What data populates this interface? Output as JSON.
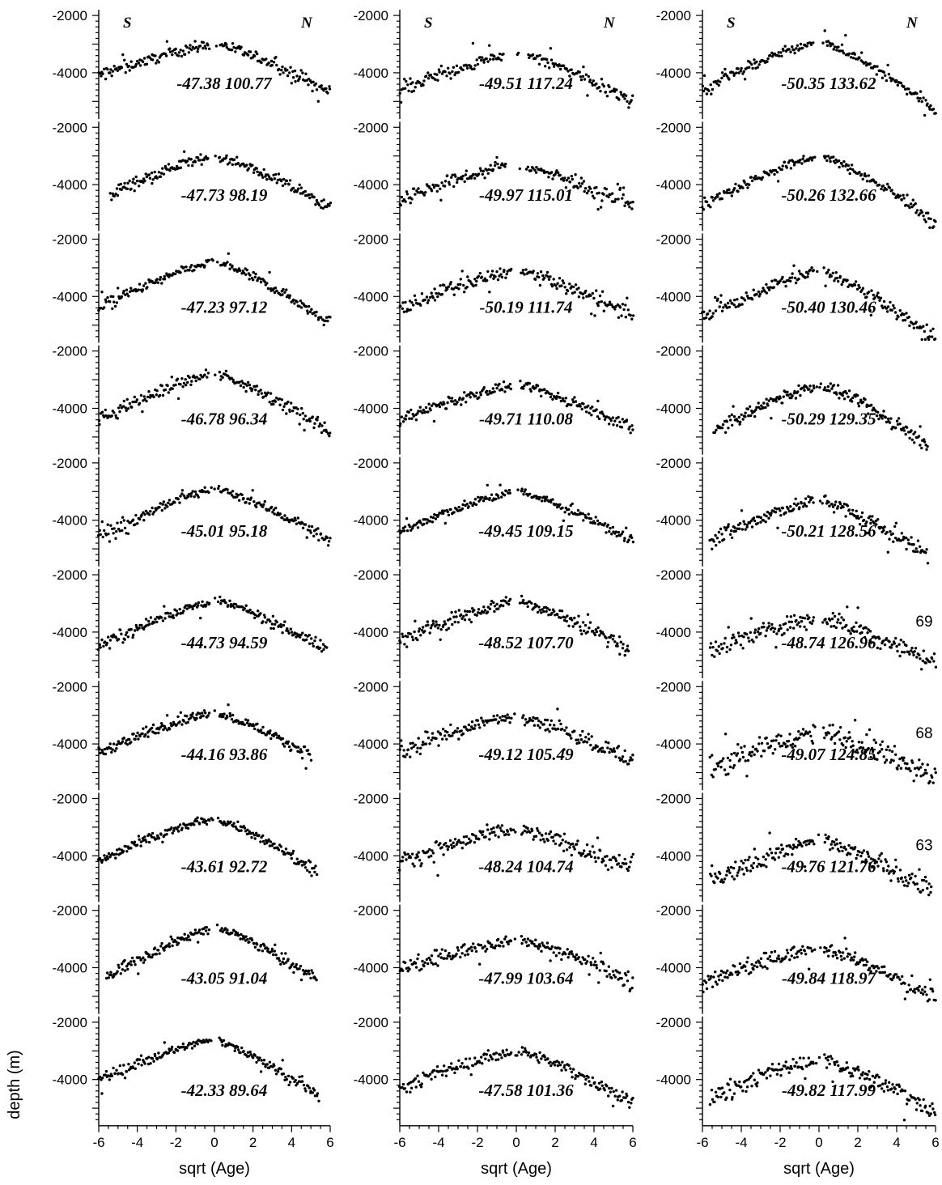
{
  "figure": {
    "ylabel": "depth (m)",
    "xlabel": "sqrt (Age)"
  },
  "chart_data": {
    "type": "scatter",
    "layout": {
      "rows": 10,
      "columns": 3,
      "order": "column-major (top to bottom, left to right)"
    },
    "xlim": [
      -6,
      6
    ],
    "x_ticks": [
      "-6",
      "-4",
      "-2",
      "0",
      "2",
      "4",
      "6"
    ],
    "ylim": [
      -5500,
      -1800
    ],
    "y_ticks": [
      "-2000",
      "-4000"
    ],
    "y_reversed": true,
    "direction_labels": {
      "left": "S",
      "right": "N"
    },
    "panels": [
      {
        "label": "-47.38 100.77",
        "xmin": -6,
        "xmax": 6,
        "dmin": -3000,
        "dleft": -4100,
        "dright": -4700,
        "noise": 120
      },
      {
        "label": "-47.73 98.19",
        "xmin": -5.4,
        "xmax": 6,
        "dmin": -3000,
        "dleft": -4300,
        "dright": -4800,
        "noise": 120
      },
      {
        "label": "-47.23 97.12",
        "xmin": -6,
        "xmax": 6,
        "dmin": -2800,
        "dleft": -4400,
        "dright": -4900,
        "noise": 110
      },
      {
        "label": "-46.78 96.34",
        "xmin": -6,
        "xmax": 6,
        "dmin": -2800,
        "dleft": -4400,
        "dright": -4800,
        "noise": 130
      },
      {
        "label": "-45.01 95.18",
        "xmin": -6,
        "xmax": 6,
        "dmin": -2900,
        "dleft": -4600,
        "dright": -4700,
        "noise": 110
      },
      {
        "label": "-44.73 94.59",
        "xmin": -6,
        "xmax": 5.8,
        "dmin": -2900,
        "dleft": -4500,
        "dright": -4600,
        "noise": 110
      },
      {
        "label": "-44.16 93.86",
        "xmin": -6,
        "xmax": 5,
        "dmin": -2900,
        "dleft": -4300,
        "dright": -4400,
        "noise": 110
      },
      {
        "label": "-43.61 92.72",
        "xmin": -6,
        "xmax": 5.3,
        "dmin": -2700,
        "dleft": -4200,
        "dright": -4600,
        "noise": 110
      },
      {
        "label": "-43.05 91.04",
        "xmin": -5.6,
        "xmax": 5.3,
        "dmin": -2600,
        "dleft": -4300,
        "dright": -4400,
        "noise": 120
      },
      {
        "label": "-42.33 89.64",
        "xmin": -6,
        "xmax": 5.4,
        "dmin": -2600,
        "dleft": -4000,
        "dright": -4600,
        "noise": 110
      },
      {
        "label": "-49.51 117.24",
        "xmin": -6,
        "xmax": 6,
        "dmin": -3300,
        "dleft": -4600,
        "dright": -5000,
        "noise": 140,
        "gap": 0.6
      },
      {
        "label": "-49.97 115.01",
        "xmin": -6,
        "xmax": 6,
        "dmin": -3300,
        "dleft": -4500,
        "dright": -4800,
        "noise": 140,
        "gap": 0.5
      },
      {
        "label": "-50.19 111.74",
        "xmin": -6,
        "xmax": 6,
        "dmin": -3100,
        "dleft": -4400,
        "dright": -4700,
        "noise": 150
      },
      {
        "label": "-49.71 110.08",
        "xmin": -6,
        "xmax": 6,
        "dmin": -3200,
        "dleft": -4400,
        "dright": -4700,
        "noise": 120
      },
      {
        "label": "-49.45 109.15",
        "xmin": -6,
        "xmax": 6,
        "dmin": -3000,
        "dleft": -4400,
        "dright": -4700,
        "noise": 110
      },
      {
        "label": "-48.52 107.70",
        "xmin": -6,
        "xmax": 5.8,
        "dmin": -2900,
        "dleft": -4300,
        "dright": -4600,
        "noise": 160
      },
      {
        "label": "-49.12 105.49",
        "xmin": -6,
        "xmax": 6,
        "dmin": -3000,
        "dleft": -4300,
        "dright": -4600,
        "noise": 170
      },
      {
        "label": "-48.24 104.74",
        "xmin": -6,
        "xmax": 6,
        "dmin": -3100,
        "dleft": -4200,
        "dright": -4500,
        "noise": 190
      },
      {
        "label": "-47.99 103.64",
        "xmin": -6,
        "xmax": 6,
        "dmin": -3000,
        "dleft": -4100,
        "dright": -4500,
        "noise": 150
      },
      {
        "label": "-47.58 101.36",
        "xmin": -6,
        "xmax": 6,
        "dmin": -3000,
        "dleft": -4300,
        "dright": -4800,
        "noise": 140
      },
      {
        "label": "-50.35 133.62",
        "xmin": -6,
        "xmax": 6,
        "dmin": -2900,
        "dleft": -4600,
        "dright": -5300,
        "noise": 110
      },
      {
        "label": "-50.26 132.66",
        "xmin": -6,
        "xmax": 6,
        "dmin": -3000,
        "dleft": -4700,
        "dright": -5300,
        "noise": 110
      },
      {
        "label": "-50.40 130.46",
        "xmin": -6,
        "xmax": 6,
        "dmin": -3100,
        "dleft": -4800,
        "dright": -5500,
        "noise": 130
      },
      {
        "label": "-50.29 129.35",
        "xmin": -5.4,
        "xmax": 5.6,
        "dmin": -3200,
        "dleft": -4800,
        "dright": -5300,
        "noise": 140
      },
      {
        "label": "-50.21 128.56",
        "xmin": -5.6,
        "xmax": 5.6,
        "dmin": -3300,
        "dleft": -4700,
        "dright": -5200,
        "noise": 170
      },
      {
        "label": "-48.74 126.96",
        "xmin": -5.6,
        "xmax": 6,
        "dmin": -3500,
        "dleft": -4600,
        "dright": -5100,
        "noise": 200,
        "side_number": "69"
      },
      {
        "label": "-49.07 124.85",
        "xmin": -5.6,
        "xmax": 6,
        "dmin": -3600,
        "dleft": -4800,
        "dright": -5100,
        "noise": 240,
        "side_number": "68"
      },
      {
        "label": "-49.76 121.76",
        "xmin": -5.6,
        "xmax": 5.8,
        "dmin": -3500,
        "dleft": -4900,
        "dright": -5200,
        "noise": 210,
        "side_number": "63"
      },
      {
        "label": "-49.84 118.97",
        "xmin": -6,
        "xmax": 6,
        "dmin": -3300,
        "dleft": -4600,
        "dright": -5100,
        "noise": 170
      },
      {
        "label": "-49.82 117.99",
        "xmin": -5.6,
        "xmax": 6,
        "dmin": -3300,
        "dleft": -4600,
        "dright": -5100,
        "noise": 180
      }
    ]
  }
}
